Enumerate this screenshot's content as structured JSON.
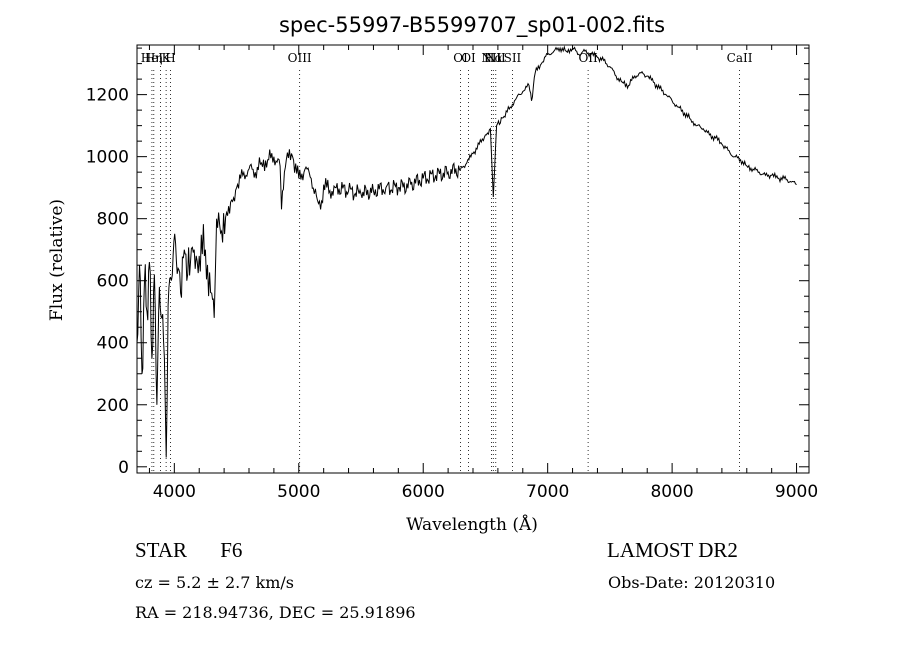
{
  "chart_data": {
    "type": "line",
    "title": "spec-55997-B5599707_sp01-002.fits",
    "xlabel": "Wavelength (Å)",
    "ylabel": "Flux (relative)",
    "xlim": [
      3700,
      9100
    ],
    "ylim": [
      -20,
      1360
    ],
    "x_ticks": [
      4000,
      5000,
      6000,
      7000,
      8000,
      9000
    ],
    "x_tick_labels": [
      "4000",
      "5000",
      "6000",
      "7000",
      "8000",
      "9000"
    ],
    "y_ticks": [
      0,
      200,
      400,
      600,
      800,
      1000,
      1200
    ],
    "y_tick_labels": [
      "0",
      "200",
      "400",
      "600",
      "800",
      "1000",
      "1200"
    ],
    "grid": false,
    "series": [
      {
        "x": [
          3700,
          3720,
          3740,
          3760,
          3780,
          3800,
          3820,
          3840,
          3860,
          3880,
          3900,
          3920,
          3935,
          3950,
          3970,
          3990,
          4010,
          4030,
          4050,
          4080,
          4100,
          4130,
          4160,
          4200,
          4250,
          4300,
          4320,
          4340,
          4380,
          4420,
          4460,
          4500,
          4550,
          4600,
          4650,
          4700,
          4750,
          4800,
          4850,
          4861,
          4900,
          4950,
          5000,
          5050,
          5100,
          5150,
          5175,
          5200,
          5250,
          5300,
          5400,
          5500,
          5600,
          5700,
          5800,
          5900,
          6000,
          6100,
          6200,
          6300,
          6350,
          6400,
          6450,
          6500,
          6540,
          6563,
          6590,
          6650,
          6700,
          6750,
          6800,
          6850,
          6870,
          6900,
          6950,
          7000,
          7050,
          7100,
          7150,
          7200,
          7250,
          7300,
          7350,
          7400,
          7450,
          7500,
          7550,
          7600,
          7650,
          7700,
          7750,
          7800,
          7850,
          7900,
          7950,
          8000,
          8050,
          8100,
          8150,
          8200,
          8250,
          8300,
          8350,
          8400,
          8450,
          8500,
          8550,
          8600,
          8650,
          8700,
          8750,
          8800,
          8850,
          8900,
          8950,
          9000
        ],
        "y": [
          400,
          650,
          300,
          600,
          500,
          660,
          350,
          620,
          200,
          580,
          480,
          350,
          30,
          520,
          610,
          680,
          720,
          640,
          560,
          700,
          600,
          660,
          700,
          680,
          700,
          560,
          480,
          800,
          760,
          820,
          860,
          900,
          940,
          960,
          950,
          980,
          990,
          1000,
          970,
          830,
          990,
          1000,
          930,
          960,
          930,
          860,
          830,
          910,
          890,
          900,
          890,
          880,
          890,
          900,
          900,
          910,
          930,
          940,
          950,
          960,
          980,
          1010,
          1040,
          1070,
          1090,
          870,
          1100,
          1130,
          1160,
          1190,
          1210,
          1230,
          1180,
          1270,
          1300,
          1330,
          1340,
          1350,
          1340,
          1350,
          1330,
          1340,
          1330,
          1320,
          1310,
          1290,
          1260,
          1240,
          1230,
          1260,
          1270,
          1260,
          1240,
          1220,
          1200,
          1180,
          1160,
          1140,
          1120,
          1100,
          1090,
          1070,
          1060,
          1040,
          1020,
          1000,
          990,
          970,
          960,
          950,
          940,
          940,
          930,
          930,
          920,
          910
        ]
      }
    ],
    "lines": [
      {
        "x": 3820,
        "labels": [
          "HeI"
        ]
      },
      {
        "x": 3835,
        "labels": [
          "Hη"
        ]
      },
      {
        "x": 3889,
        "labels": []
      },
      {
        "x": 3934,
        "labels": [
          "K"
        ]
      },
      {
        "x": 3969,
        "labels": [
          "H"
        ]
      },
      {
        "x": 5007,
        "labels": [
          "OIII"
        ]
      },
      {
        "x": 6300,
        "labels": [
          "OI"
        ]
      },
      {
        "x": 6364,
        "labels": [
          "OI"
        ]
      },
      {
        "x": 6548,
        "labels": [
          "NII"
        ]
      },
      {
        "x": 6563,
        "labels": [
          "Hα"
        ]
      },
      {
        "x": 6583,
        "labels": [
          "NII"
        ]
      },
      {
        "x": 6717,
        "labels": [
          "SII"
        ]
      },
      {
        "x": 7325,
        "labels": [
          "OII"
        ]
      },
      {
        "x": 8542,
        "labels": [
          "CaII"
        ]
      }
    ]
  },
  "info": {
    "object_class": "STAR",
    "subclass": "F6",
    "redshift": "cz = 5.2 ± 2.7 km/s",
    "coords": "RA = 218.94736, DEC =  25.91896",
    "survey": "LAMOST DR2",
    "obs_date": "Obs-Date: 20120310"
  }
}
